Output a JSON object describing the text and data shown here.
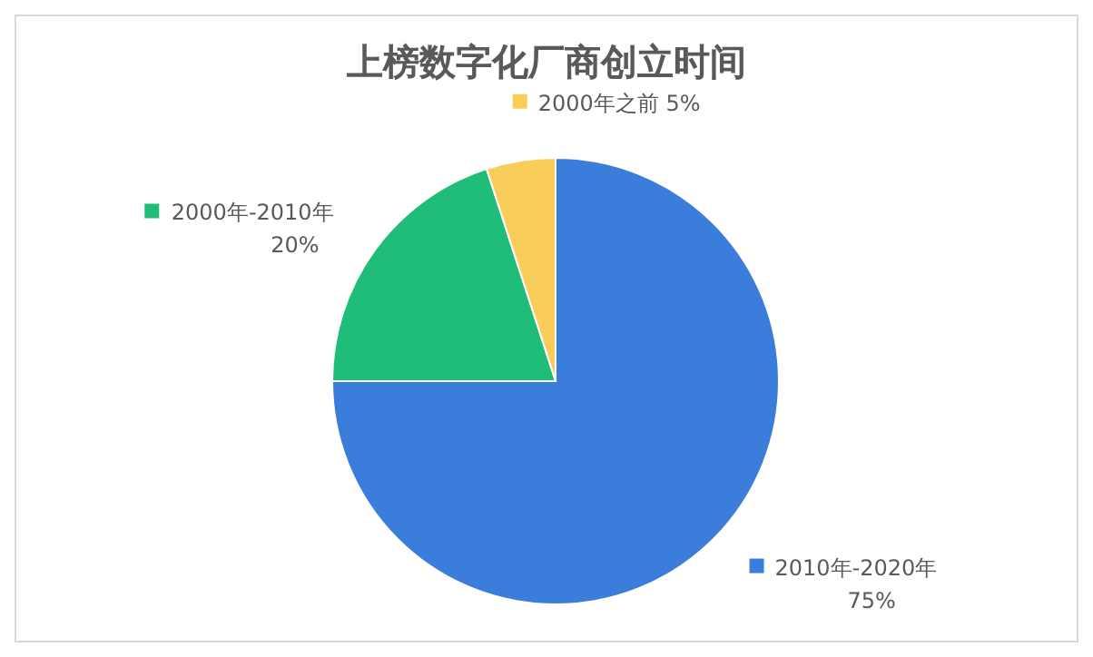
{
  "chart_data": {
    "type": "pie",
    "title": "上榜数字化厂商创立时间",
    "categories": [
      "2010年-2020年",
      "2000年-2010年",
      "2000年之前"
    ],
    "values": [
      75,
      20,
      5
    ],
    "colors": [
      "#3a7ddb",
      "#20bd7a",
      "#f8cd5a"
    ],
    "value_labels": [
      "75%",
      "20%",
      "5%"
    ],
    "legend": "top left"
  }
}
